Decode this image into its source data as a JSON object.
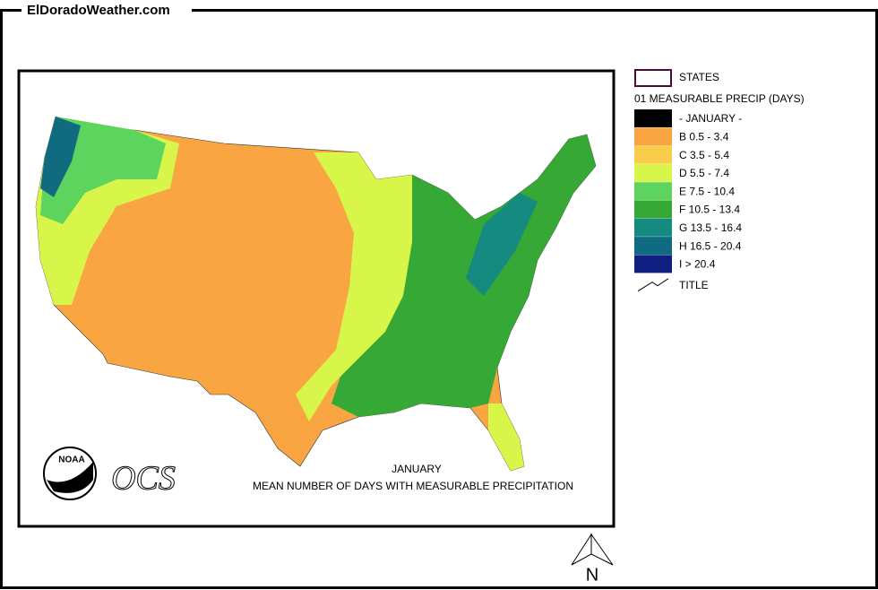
{
  "header": {
    "title": "ElDoradoWeather.com"
  },
  "legend": {
    "states_label": "STATES",
    "heading": "01 MEASURABLE PRECIP (DAYS)",
    "items": [
      {
        "label": "- JANUARY -",
        "color": "#000000"
      },
      {
        "label": "B 0.5 - 3.4",
        "color": "#f9a541"
      },
      {
        "label": "C 3.5 - 5.4",
        "color": "#f9cc4a"
      },
      {
        "label": "D 5.5 - 7.4",
        "color": "#d8f64a"
      },
      {
        "label": "E 7.5 - 10.4",
        "color": "#5dd45d"
      },
      {
        "label": "F 10.5 - 13.4",
        "color": "#35a835"
      },
      {
        "label": "G 13.5 - 16.4",
        "color": "#158a80"
      },
      {
        "label": "H 16.5 - 20.4",
        "color": "#106a80"
      },
      {
        "label": "I > 20.4",
        "color": "#102080"
      }
    ],
    "title_label": "TITLE"
  },
  "map": {
    "caption_month": "JANUARY",
    "caption": "MEAN NUMBER OF DAYS WITH MEASURABLE PRECIPITATION",
    "logos": [
      "NOAA",
      "OCS"
    ]
  },
  "north": "N"
}
